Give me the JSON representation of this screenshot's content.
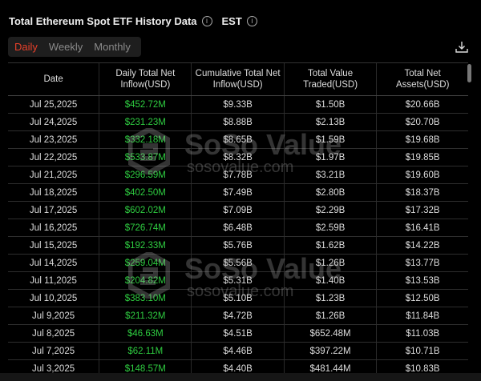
{
  "header": {
    "title": "Total Ethereum Spot ETF History Data",
    "timezone": "EST",
    "info_icon": "info-icon",
    "download_icon": "download-icon"
  },
  "tabs": [
    {
      "label": "Daily",
      "active": true
    },
    {
      "label": "Weekly",
      "active": false
    },
    {
      "label": "Monthly",
      "active": false
    }
  ],
  "colors": {
    "accent": "#e8402a",
    "positive": "#2ecc40",
    "background": "#000000"
  },
  "watermark": {
    "brand": "SoSo Value",
    "url": "sosovalue.com"
  },
  "table": {
    "columns": [
      "Date",
      "Daily Total Net Inflow(USD)",
      "Cumulative Total Net Inflow(USD)",
      "Total Value Traded(USD)",
      "Total Net Assets(USD)"
    ],
    "rows": [
      [
        "Jul 25,2025",
        "$452.72M",
        "$9.33B",
        "$1.50B",
        "$20.66B"
      ],
      [
        "Jul 24,2025",
        "$231.23M",
        "$8.88B",
        "$2.13B",
        "$20.70B"
      ],
      [
        "Jul 23,2025",
        "$332.18M",
        "$8.65B",
        "$1.59B",
        "$19.68B"
      ],
      [
        "Jul 22,2025",
        "$533.87M",
        "$8.32B",
        "$1.97B",
        "$19.85B"
      ],
      [
        "Jul 21,2025",
        "$296.59M",
        "$7.78B",
        "$3.21B",
        "$19.60B"
      ],
      [
        "Jul 18,2025",
        "$402.50M",
        "$7.49B",
        "$2.80B",
        "$18.37B"
      ],
      [
        "Jul 17,2025",
        "$602.02M",
        "$7.09B",
        "$2.29B",
        "$17.32B"
      ],
      [
        "Jul 16,2025",
        "$726.74M",
        "$6.48B",
        "$2.59B",
        "$16.41B"
      ],
      [
        "Jul 15,2025",
        "$192.33M",
        "$5.76B",
        "$1.62B",
        "$14.22B"
      ],
      [
        "Jul 14,2025",
        "$259.04M",
        "$5.56B",
        "$1.26B",
        "$13.77B"
      ],
      [
        "Jul 11,2025",
        "$204.82M",
        "$5.31B",
        "$1.40B",
        "$13.53B"
      ],
      [
        "Jul 10,2025",
        "$383.10M",
        "$5.10B",
        "$1.23B",
        "$12.50B"
      ],
      [
        "Jul 9,2025",
        "$211.32M",
        "$4.72B",
        "$1.26B",
        "$11.84B"
      ],
      [
        "Jul 8,2025",
        "$46.63M",
        "$4.51B",
        "$652.48M",
        "$11.03B"
      ],
      [
        "Jul 7,2025",
        "$62.11M",
        "$4.46B",
        "$397.22M",
        "$10.71B"
      ],
      [
        "Jul 3,2025",
        "$148.57M",
        "$4.40B",
        "$481.44M",
        "$10.83B"
      ]
    ]
  }
}
